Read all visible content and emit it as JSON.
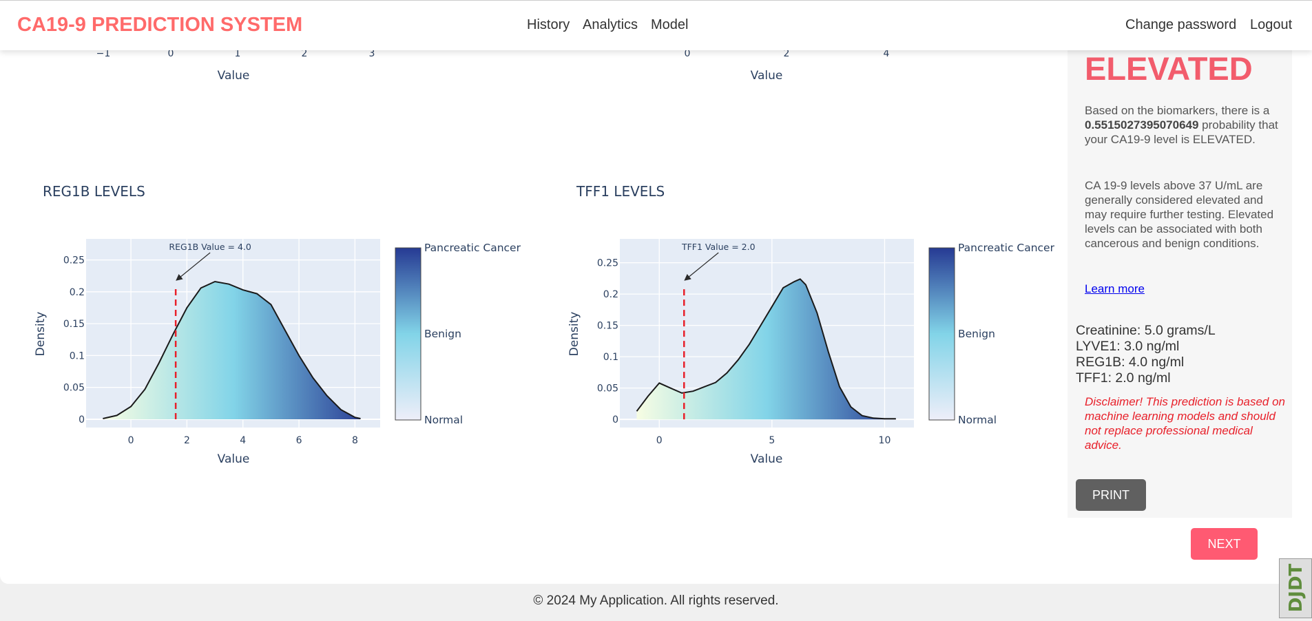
{
  "nav": {
    "brand": "CA19-9 PREDICTION SYSTEM",
    "links": [
      "History",
      "Analytics",
      "Model"
    ],
    "change_password": "Change password",
    "logout": "Logout"
  },
  "top_axes": {
    "left": {
      "ticks": [
        "−1",
        "0",
        "1",
        "2",
        "3"
      ],
      "xlabel": "Value"
    },
    "right": {
      "ticks": [
        "0",
        "2",
        "4"
      ],
      "xlabel": "Value"
    }
  },
  "chart_data": [
    {
      "type": "area",
      "title": "REG1B LEVELS",
      "xlabel": "Value",
      "ylabel": "Density",
      "xlim": [
        -1.6,
        8.9
      ],
      "ylim": [
        -0.013,
        0.283
      ],
      "xticks": [
        0,
        2,
        4,
        6,
        8
      ],
      "yticks": [
        0,
        0.05,
        0.1,
        0.15,
        0.2,
        0.25
      ],
      "ytick_labels": [
        "0",
        "0.05",
        "0.1",
        "0.15",
        "0.2",
        "0.25"
      ],
      "series": [
        {
          "x": [
            -1,
            -0.5,
            0,
            0.5,
            1,
            1.5,
            2,
            2.5,
            3,
            3.5,
            4,
            4.5,
            5,
            5.5,
            6,
            6.5,
            7,
            7.5,
            8,
            8.2
          ],
          "y": [
            0.001,
            0.006,
            0.02,
            0.047,
            0.088,
            0.133,
            0.175,
            0.206,
            0.216,
            0.212,
            0.203,
            0.197,
            0.18,
            0.14,
            0.1,
            0.065,
            0.037,
            0.015,
            0.003,
            0.001
          ]
        }
      ],
      "marker": {
        "value": 1.6,
        "label": "REG1B Value = 4.0"
      },
      "colorbar": {
        "labels": [
          "Pancreatic Cancer",
          "Benign",
          "Normal"
        ],
        "colors": [
          "#f7fde3",
          "#82d4e8",
          "#263a93"
        ]
      },
      "grid": true
    },
    {
      "type": "area",
      "title": "TFF1 LEVELS",
      "xlabel": "Value",
      "ylabel": "Density",
      "xlim": [
        -1.75,
        11.3
      ],
      "ylim": [
        -0.013,
        0.288
      ],
      "xticks": [
        0,
        5,
        10
      ],
      "yticks": [
        0,
        0.05,
        0.1,
        0.15,
        0.2,
        0.25
      ],
      "ytick_labels": [
        "0",
        "0.05",
        "0.1",
        "0.15",
        "0.2",
        "0.25"
      ],
      "series": [
        {
          "x": [
            -1,
            -0.5,
            0,
            0.5,
            1,
            1.5,
            2,
            2.5,
            3,
            3.5,
            4,
            4.5,
            5,
            5.5,
            6,
            6.25,
            6.5,
            7,
            7.5,
            8,
            8.5,
            9,
            9.5,
            10,
            10.5
          ],
          "y": [
            0.013,
            0.037,
            0.058,
            0.05,
            0.042,
            0.045,
            0.052,
            0.059,
            0.074,
            0.095,
            0.12,
            0.15,
            0.18,
            0.21,
            0.22,
            0.224,
            0.215,
            0.17,
            0.108,
            0.052,
            0.02,
            0.006,
            0.002,
            0.001,
            0.001
          ]
        }
      ],
      "marker": {
        "value": 1.1,
        "label": "TFF1 Value = 2.0"
      },
      "colorbar": {
        "labels": [
          "Pancreatic Cancer",
          "Benign",
          "Normal"
        ],
        "colors": [
          "#f7fde3",
          "#82d4e8",
          "#263a93"
        ]
      },
      "grid": true
    }
  ],
  "result": {
    "status": "ELEVATED",
    "para1_before": "Based on the biomarkers, there is a ",
    "probability": "0.5515027395070649",
    "para1_after": " probability that your CA19-9 level is ELEVATED.",
    "para2": "CA 19-9 levels above 37 U/mL are generally considered elevated and may require further testing. Elevated levels can be associated with both cancerous and benign conditions.",
    "learn_more": "Learn more"
  },
  "biomarkers": [
    "Creatinine: 5.0 grams/L",
    "LYVE1: 3.0 ng/ml",
    "REG1B: 4.0 ng/ml",
    "TFF1: 2.0 ng/ml"
  ],
  "disclaimer": "Disclaimer! This prediction is based on machine learning models and should not replace professional medical advice.",
  "buttons": {
    "print": "PRINT",
    "next": "NEXT"
  },
  "footer": "© 2024 My Application. All rights reserved.",
  "badge_text": "DJDT"
}
